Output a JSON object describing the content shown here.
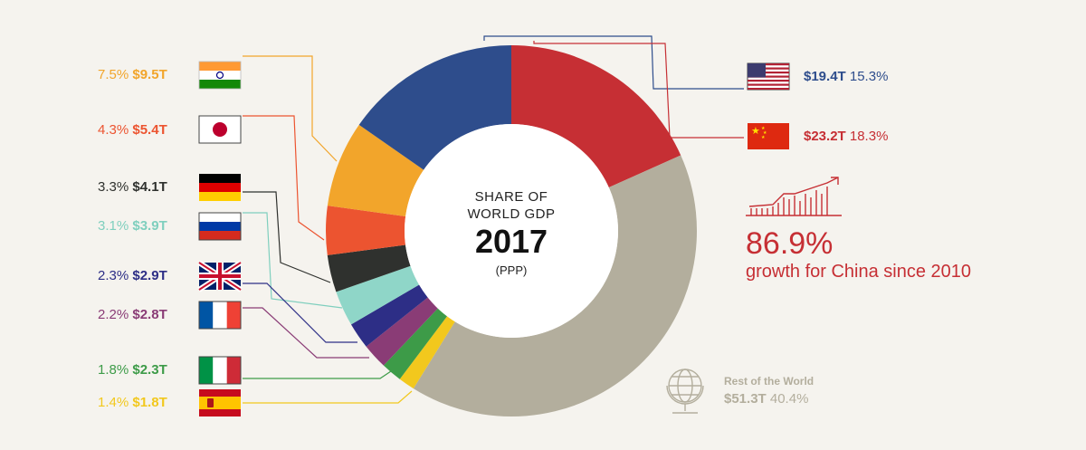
{
  "center": {
    "line1": "SHARE OF",
    "line2": "WORLD GDP",
    "year": "2017",
    "sub": "(PPP)"
  },
  "growth": {
    "value": "86.9%",
    "text": "growth for China since 2010",
    "color": "#c62f34"
  },
  "chart_data": {
    "type": "pie",
    "variant": "donut",
    "title": "SHARE OF WORLD GDP 2017 (PPP)",
    "unit": "$T",
    "slices": [
      {
        "name": "China",
        "value": 23.2,
        "pct": "18.3%",
        "amount": "$23.2T",
        "color": "#c62f34"
      },
      {
        "name": "Rest of the World",
        "value": 51.3,
        "pct": "40.4%",
        "amount": "$51.3T",
        "color": "#b3ae9d"
      },
      {
        "name": "Spain",
        "value": 1.8,
        "pct": "1.4%",
        "amount": "$1.8T",
        "color": "#f2c81d"
      },
      {
        "name": "Italy",
        "value": 2.3,
        "pct": "1.8%",
        "amount": "$2.3T",
        "color": "#3d9b48"
      },
      {
        "name": "France",
        "value": 2.8,
        "pct": "2.2%",
        "amount": "$2.8T",
        "color": "#8a3c76"
      },
      {
        "name": "United Kingdom",
        "value": 2.9,
        "pct": "2.3%",
        "amount": "$2.9T",
        "color": "#2d2e86"
      },
      {
        "name": "Russia",
        "value": 3.9,
        "pct": "3.1%",
        "amount": "$3.9T",
        "color": "#8fd6c8"
      },
      {
        "name": "Germany",
        "value": 4.1,
        "pct": "3.3%",
        "amount": "$4.1T",
        "color": "#2f312e"
      },
      {
        "name": "Japan",
        "value": 5.4,
        "pct": "4.3%",
        "amount": "$5.4T",
        "color": "#ec5430"
      },
      {
        "name": "India",
        "value": 9.5,
        "pct": "7.5%",
        "amount": "$9.5T",
        "color": "#f2a52b"
      },
      {
        "name": "United States",
        "value": 19.4,
        "pct": "15.3%",
        "amount": "$19.4T",
        "color": "#2e4d8c"
      }
    ]
  },
  "labels": {
    "usa": {
      "amount": "$19.4T",
      "pct": "15.3%",
      "color": "#2e4d8c"
    },
    "china": {
      "amount": "$23.2T",
      "pct": "18.3%",
      "color": "#c62f34"
    },
    "india": {
      "pct": "7.5%",
      "amount": "$9.5T",
      "color": "#f2a52b"
    },
    "japan": {
      "pct": "4.3%",
      "amount": "$5.4T",
      "color": "#ec5430"
    },
    "germany": {
      "pct": "3.3%",
      "amount": "$4.1T",
      "color": "#2f312e"
    },
    "russia": {
      "pct": "3.1%",
      "amount": "$3.9T",
      "color": "#7fcfbe"
    },
    "uk": {
      "pct": "2.3%",
      "amount": "$2.9T",
      "color": "#2d2e86"
    },
    "france": {
      "pct": "2.2%",
      "amount": "$2.8T",
      "color": "#8a3c76"
    },
    "italy": {
      "pct": "1.8%",
      "amount": "$2.3T",
      "color": "#3d9b48"
    },
    "spain": {
      "pct": "1.4%",
      "amount": "$1.8T",
      "color": "#f2c81d"
    },
    "rest": {
      "title": "Rest of the World",
      "amount": "$51.3T",
      "pct": "40.4%",
      "color": "#b3ae9d"
    }
  },
  "icons": {
    "growth": "growth-chart-icon",
    "globe": "globe-icon"
  }
}
